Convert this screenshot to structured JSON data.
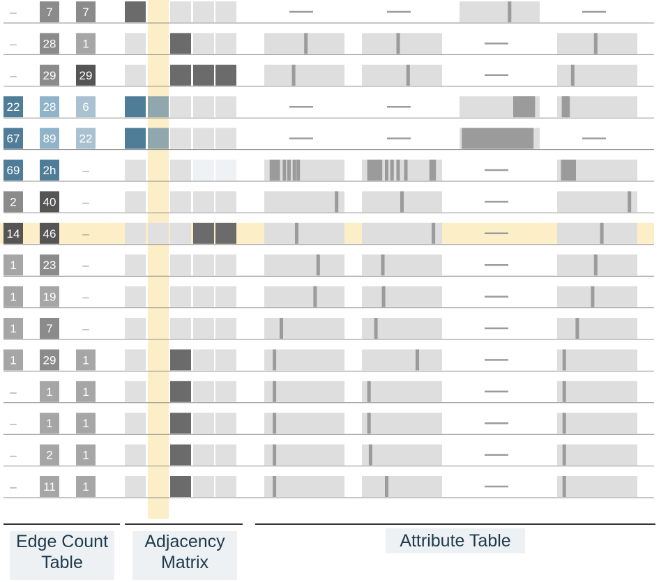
{
  "sections": {
    "edge_count": {
      "label_line1": "Edge Count",
      "label_line2": "Table"
    },
    "adjacency": {
      "label_line1": "Adjacency",
      "label_line2": "Matrix"
    },
    "attribute": {
      "label": "Attribute Table"
    }
  },
  "colors": {
    "count_gray_light": "#a6a6a6",
    "count_gray_mid": "#8b8b8b",
    "count_gray_dark": "#555555",
    "count_blue_dark": "#4f7d98",
    "count_blue_mid": "#8fb3c8",
    "count_blue_light": "#a9c1d1",
    "cell_empty": "#e0e0e0",
    "cell_filled": "#6b6b6b",
    "cell_blue": "#4f7d98",
    "cell_bluegray": "#8fa7ad",
    "cell_pale": "#eef2f5",
    "highlight": "#fcefc7",
    "bar_bg": "#dedede",
    "bar_tick": "#9b9b9b",
    "rule": "#8c8c8c"
  },
  "chart_data": {
    "type": "table",
    "highlighted_row": 7,
    "highlighted_column": 1,
    "rows": [
      {
        "counts": [
          "–",
          "7",
          "7"
        ],
        "count_styles": [
          "dash",
          "gray_mid",
          "gray_mid"
        ],
        "adjacency": [
          "filled",
          "hl",
          "empty",
          "empty",
          "empty"
        ],
        "attributes": [
          {
            "type": "dash"
          },
          {
            "type": "dash"
          },
          {
            "type": "bar",
            "ticks": [
              0.63
            ]
          },
          {
            "type": "dash"
          }
        ]
      },
      {
        "counts": [
          "–",
          "28",
          "1"
        ],
        "count_styles": [
          "dash",
          "gray_mid",
          "gray_light"
        ],
        "adjacency": [
          "empty",
          "hl",
          "filled",
          "empty",
          "empty"
        ],
        "attributes": [
          {
            "type": "bar",
            "ticks": [
              0.52
            ]
          },
          {
            "type": "bar",
            "ticks": [
              0.45
            ]
          },
          {
            "type": "dash"
          },
          {
            "type": "bar",
            "ticks": [
              0.48
            ]
          }
        ]
      },
      {
        "counts": [
          "–",
          "29",
          "29"
        ],
        "count_styles": [
          "dash",
          "gray_mid",
          "gray_dark"
        ],
        "adjacency": [
          "empty",
          "hl",
          "filled",
          "filled",
          "filled"
        ],
        "attributes": [
          {
            "type": "bar",
            "ticks": [
              0.36
            ]
          },
          {
            "type": "bar",
            "ticks": [
              0.58
            ]
          },
          {
            "type": "dash"
          },
          {
            "type": "bar",
            "ticks": [
              0.18
            ]
          }
        ]
      },
      {
        "counts": [
          "22",
          "28",
          "6"
        ],
        "count_styles": [
          "blue_dark",
          "blue_mid",
          "blue_light"
        ],
        "adjacency": [
          "blue",
          "bluegray",
          "empty",
          "empty",
          "empty"
        ],
        "attributes": [
          {
            "type": "dash"
          },
          {
            "type": "dash"
          },
          {
            "type": "bar",
            "ticks": [
              0.7,
              0.74,
              0.78,
              0.82,
              0.86,
              0.9,
              0.94
            ]
          },
          {
            "type": "bar",
            "ticks": [
              0.06,
              0.09,
              0.12
            ]
          }
        ]
      },
      {
        "counts": [
          "67",
          "89",
          "22"
        ],
        "count_styles": [
          "blue_dark",
          "blue_mid",
          "blue_light"
        ],
        "adjacency": [
          "blue",
          "bluegray",
          "empty",
          "empty",
          "empty"
        ],
        "attributes": [
          {
            "type": "dash"
          },
          {
            "type": "dash"
          },
          {
            "type": "bar",
            "ticks": [
              0.03,
              0.06,
              0.09,
              0.12,
              0.15,
              0.18,
              0.21,
              0.24,
              0.27,
              0.3,
              0.33,
              0.36,
              0.4,
              0.44,
              0.48,
              0.52,
              0.56,
              0.6,
              0.64,
              0.68,
              0.72,
              0.76,
              0.8,
              0.84,
              0.88,
              0.92
            ]
          },
          {
            "type": "dash"
          }
        ]
      },
      {
        "counts": [
          "69",
          "2h",
          "–"
        ],
        "count_styles": [
          "blue_dark",
          "blue_dark",
          "dash"
        ],
        "adjacency": [
          "empty",
          "hl",
          "empty",
          "pale",
          "pale"
        ],
        "attributes": [
          {
            "type": "bar",
            "ticks": [
              0.07,
              0.1,
              0.13,
              0.16,
              0.24,
              0.3,
              0.37,
              0.42
            ]
          },
          {
            "type": "bar",
            "ticks": [
              0.07,
              0.1,
              0.13,
              0.16,
              0.19,
              0.22,
              0.3,
              0.37,
              0.45,
              0.55,
              0.88,
              0.92
            ]
          },
          {
            "type": "dash"
          },
          {
            "type": "bar",
            "ticks": [
              0.05,
              0.08,
              0.11,
              0.14,
              0.17,
              0.2
            ]
          }
        ]
      },
      {
        "counts": [
          "2",
          "40",
          "–"
        ],
        "count_styles": [
          "gray_mid",
          "gray_dark",
          "dash"
        ],
        "adjacency": [
          "empty",
          "hl",
          "empty",
          "empty",
          "empty"
        ],
        "attributes": [
          {
            "type": "bar",
            "ticks": [
              0.92
            ]
          },
          {
            "type": "bar",
            "ticks": [
              0.5
            ]
          },
          {
            "type": "dash"
          },
          {
            "type": "bar",
            "ticks": [
              0.92
            ]
          }
        ]
      },
      {
        "counts": [
          "14",
          "46",
          "–"
        ],
        "count_styles": [
          "gray_dark",
          "gray_dark",
          "dash"
        ],
        "adjacency": [
          "empty",
          "empty",
          "empty",
          "filled",
          "filled"
        ],
        "attributes": [
          {
            "type": "bar",
            "ticks": [
              0.4
            ]
          },
          {
            "type": "bar",
            "ticks": [
              0.91
            ]
          },
          {
            "type": "dash"
          },
          {
            "type": "bar",
            "ticks": [
              0.56
            ]
          }
        ]
      },
      {
        "counts": [
          "1",
          "23",
          "–"
        ],
        "count_styles": [
          "gray_light",
          "gray_mid",
          "dash"
        ],
        "adjacency": [
          "empty",
          "hl",
          "empty",
          "empty",
          "empty"
        ],
        "attributes": [
          {
            "type": "bar",
            "ticks": [
              0.68
            ]
          },
          {
            "type": "bar",
            "ticks": [
              0.25
            ]
          },
          {
            "type": "dash"
          },
          {
            "type": "bar",
            "ticks": [
              0.48
            ]
          }
        ]
      },
      {
        "counts": [
          "1",
          "19",
          "–"
        ],
        "count_styles": [
          "gray_light",
          "gray_light",
          "dash"
        ],
        "adjacency": [
          "empty",
          "hl",
          "empty",
          "empty",
          "empty"
        ],
        "attributes": [
          {
            "type": "bar",
            "ticks": [
              0.64
            ]
          },
          {
            "type": "bar",
            "ticks": [
              0.26
            ]
          },
          {
            "type": "dash"
          },
          {
            "type": "bar",
            "ticks": [
              0.44
            ]
          }
        ]
      },
      {
        "counts": [
          "1",
          "7",
          "–"
        ],
        "count_styles": [
          "gray_light",
          "gray_mid",
          "dash"
        ],
        "adjacency": [
          "empty",
          "hl",
          "empty",
          "empty",
          "empty"
        ],
        "attributes": [
          {
            "type": "bar",
            "ticks": [
              0.2
            ]
          },
          {
            "type": "bar",
            "ticks": [
              0.16
            ]
          },
          {
            "type": "dash"
          },
          {
            "type": "bar",
            "ticks": [
              0.24
            ]
          }
        ]
      },
      {
        "counts": [
          "1",
          "29",
          "1"
        ],
        "count_styles": [
          "gray_light",
          "gray_mid",
          "gray_light"
        ],
        "adjacency": [
          "empty",
          "hl",
          "filled",
          "empty",
          "empty"
        ],
        "attributes": [
          {
            "type": "bar",
            "ticks": [
              0.11
            ]
          },
          {
            "type": "bar",
            "ticks": [
              0.7
            ]
          },
          {
            "type": "dash"
          },
          {
            "type": "bar",
            "ticks": [
              0.07
            ]
          }
        ]
      },
      {
        "counts": [
          "–",
          "1",
          "1"
        ],
        "count_styles": [
          "dash",
          "gray_light",
          "gray_light"
        ],
        "adjacency": [
          "empty",
          "hl",
          "filled",
          "empty",
          "empty"
        ],
        "attributes": [
          {
            "type": "bar",
            "ticks": [
              0.11
            ]
          },
          {
            "type": "bar",
            "ticks": [
              0.07
            ]
          },
          {
            "type": "dash"
          },
          {
            "type": "bar",
            "ticks": [
              0.07
            ]
          }
        ]
      },
      {
        "counts": [
          "–",
          "1",
          "1"
        ],
        "count_styles": [
          "dash",
          "gray_light",
          "gray_light"
        ],
        "adjacency": [
          "empty",
          "hl",
          "filled",
          "empty",
          "empty"
        ],
        "attributes": [
          {
            "type": "bar",
            "ticks": [
              0.11
            ]
          },
          {
            "type": "bar",
            "ticks": [
              0.07
            ]
          },
          {
            "type": "dash"
          },
          {
            "type": "bar",
            "ticks": [
              0.07
            ]
          }
        ]
      },
      {
        "counts": [
          "–",
          "2",
          "1"
        ],
        "count_styles": [
          "dash",
          "gray_light",
          "gray_light"
        ],
        "adjacency": [
          "empty",
          "hl",
          "filled",
          "empty",
          "empty"
        ],
        "attributes": [
          {
            "type": "bar",
            "ticks": [
              0.11
            ]
          },
          {
            "type": "bar",
            "ticks": [
              0.09
            ]
          },
          {
            "type": "dash"
          },
          {
            "type": "bar",
            "ticks": [
              0.07
            ]
          }
        ]
      },
      {
        "counts": [
          "–",
          "11",
          "1"
        ],
        "count_styles": [
          "dash",
          "gray_light",
          "gray_light"
        ],
        "adjacency": [
          "empty",
          "hl",
          "filled",
          "empty",
          "empty"
        ],
        "attributes": [
          {
            "type": "bar",
            "ticks": [
              0.11
            ]
          },
          {
            "type": "bar",
            "ticks": [
              0.3
            ]
          },
          {
            "type": "dash"
          },
          {
            "type": "bar",
            "ticks": [
              0.07
            ]
          }
        ]
      }
    ]
  }
}
